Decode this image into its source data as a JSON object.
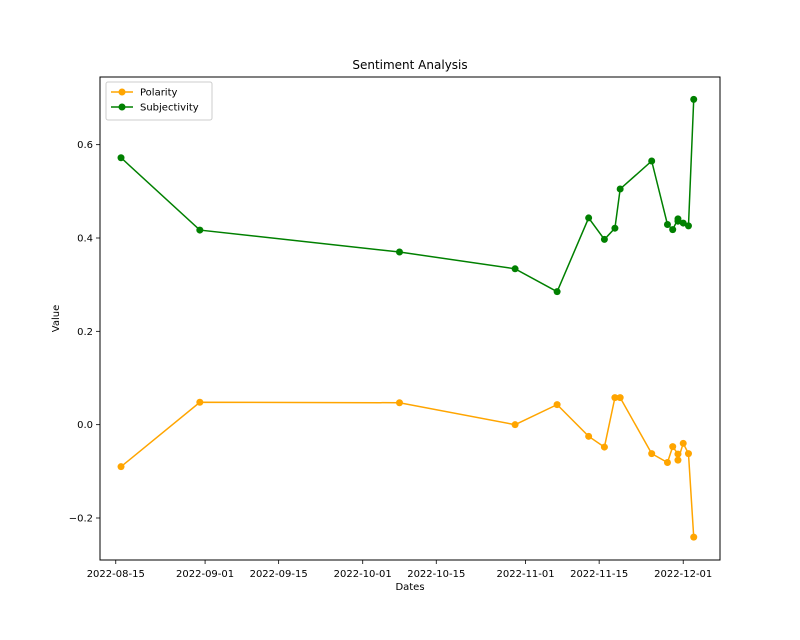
{
  "chart_data": {
    "type": "line",
    "title": "Sentiment Analysis",
    "xlabel": "Dates",
    "ylabel": "Value",
    "x_axis_type": "date",
    "xlim": [
      "2022-08-12",
      "2022-12-08"
    ],
    "ylim": [
      -0.29,
      0.745
    ],
    "x_tick_labels": [
      "2022-08-15",
      "2022-09-01",
      "2022-09-15",
      "2022-10-01",
      "2022-10-15",
      "2022-11-01",
      "2022-11-15",
      "2022-12-01"
    ],
    "y_ticks": [
      -0.2,
      0.0,
      0.2,
      0.4,
      0.6
    ],
    "y_tick_labels": [
      "−0.2",
      "0.0",
      "0.2",
      "0.4",
      "0.6"
    ],
    "grid": false,
    "legend_position": "top-left",
    "x": [
      "2022-08-16",
      "2022-08-31",
      "2022-10-08",
      "2022-10-30",
      "2022-11-07",
      "2022-11-13",
      "2022-11-16",
      "2022-11-18",
      "2022-11-19",
      "2022-11-25",
      "2022-11-28",
      "2022-11-29",
      "2022-11-30",
      "2022-11-30",
      "2022-12-01",
      "2022-12-02",
      "2022-12-03"
    ],
    "series": [
      {
        "name": "Polarity",
        "color": "#ffa500",
        "values": [
          -0.09,
          0.048,
          0.047,
          0.0,
          0.043,
          -0.025,
          -0.048,
          0.058,
          0.058,
          -0.062,
          -0.081,
          -0.047,
          -0.063,
          -0.076,
          -0.04,
          -0.062,
          -0.241
        ]
      },
      {
        "name": "Subjectivity",
        "color": "#008000",
        "values": [
          0.572,
          0.417,
          0.37,
          0.334,
          0.285,
          0.443,
          0.397,
          0.421,
          0.505,
          0.565,
          0.429,
          0.418,
          0.441,
          0.436,
          0.432,
          0.426,
          0.697
        ]
      }
    ]
  }
}
